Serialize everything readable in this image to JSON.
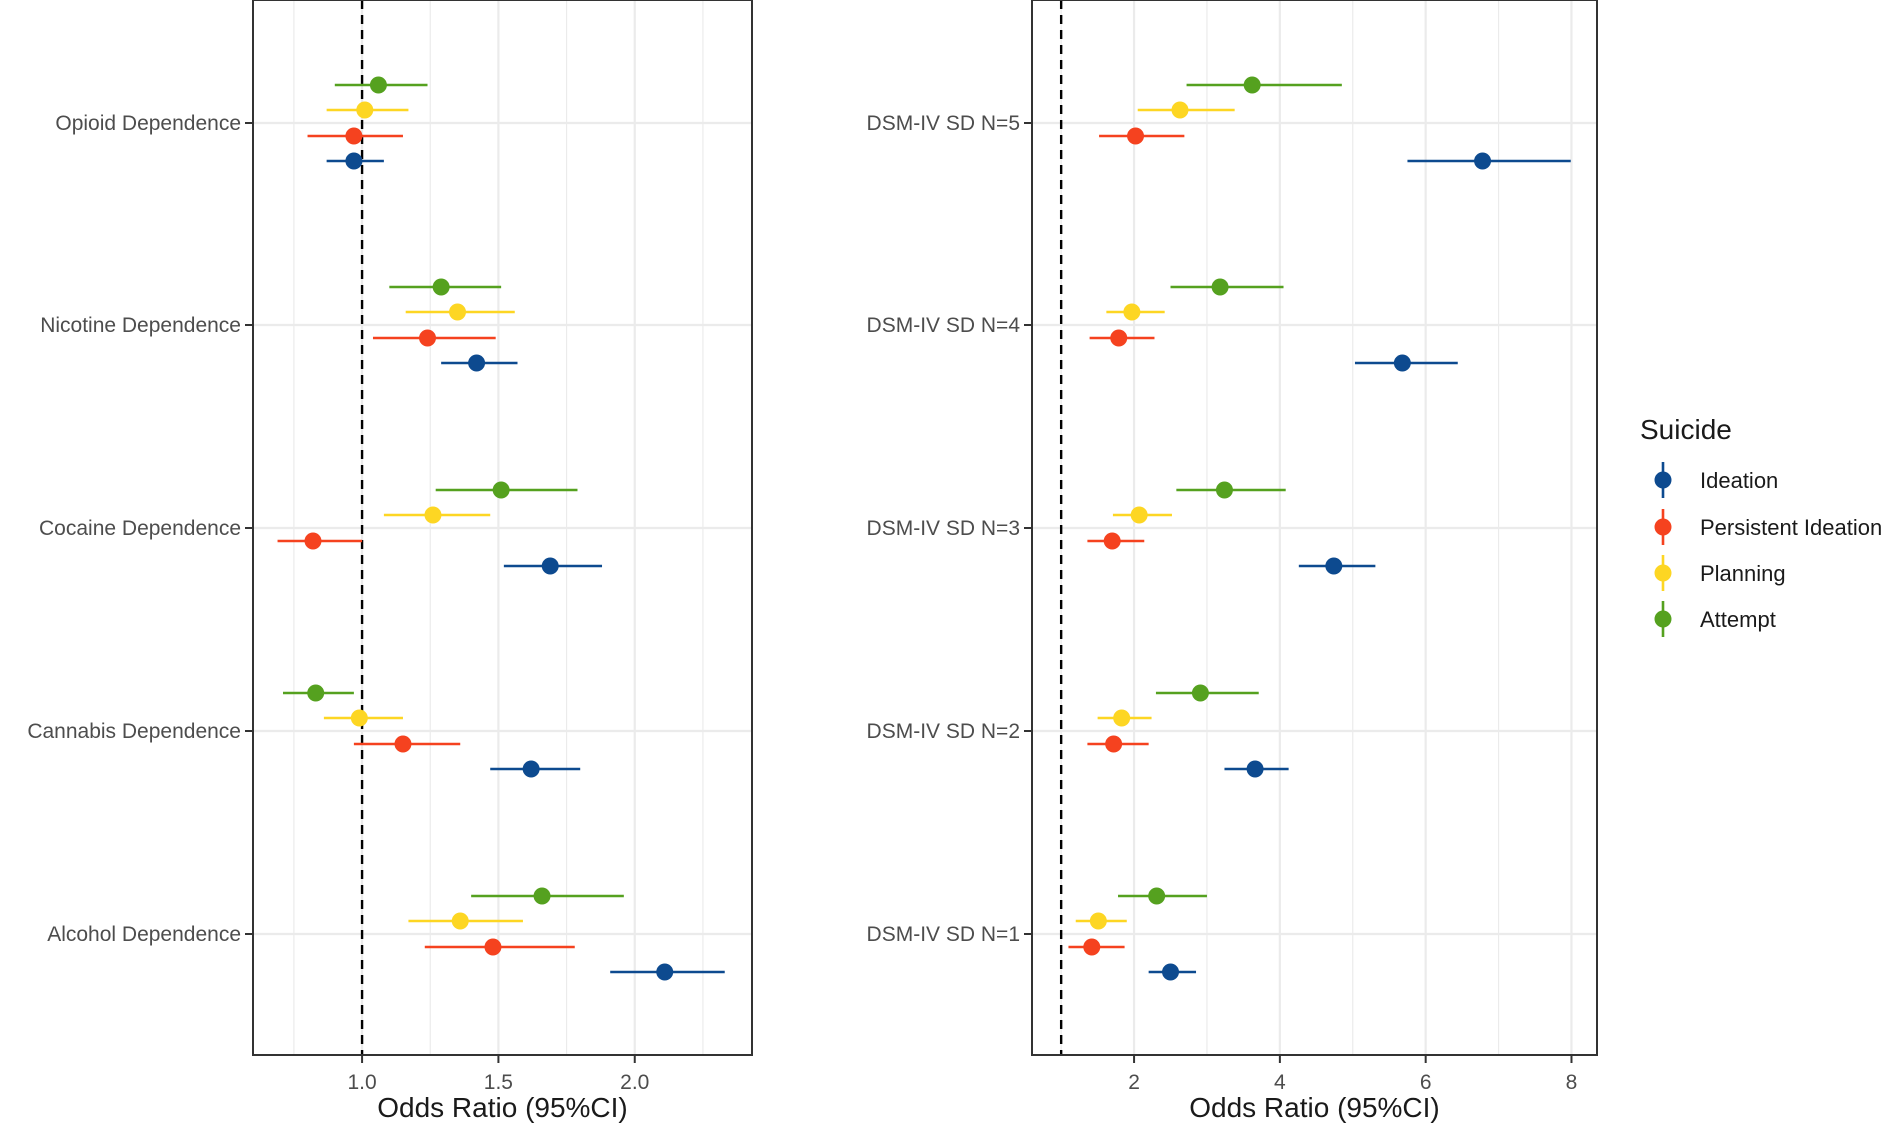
{
  "chart_data": [
    {
      "type": "forest",
      "xlabel": "Odds Ratio (95%CI)",
      "xlim": [
        0.6,
        2.43
      ],
      "xticks": [
        "1.0",
        "1.5",
        "2.0"
      ],
      "xtick_values": [
        1.0,
        1.5,
        2.0
      ],
      "reference_line": 1.0,
      "grid": true,
      "categories": [
        "Opioid Dependence",
        "Nicotine Dependence",
        "Cocaine Dependence",
        "Cannabis Dependence",
        "Alcohol Dependence"
      ],
      "series": [
        {
          "name": "Ideation",
          "estimates": [
            0.97,
            1.42,
            1.69,
            1.62,
            2.11
          ],
          "lower": [
            0.87,
            1.29,
            1.52,
            1.47,
            1.91
          ],
          "upper": [
            1.08,
            1.57,
            1.88,
            1.8,
            2.33
          ]
        },
        {
          "name": "Persistent Ideation",
          "estimates": [
            0.97,
            1.24,
            0.82,
            1.15,
            1.48
          ],
          "lower": [
            0.8,
            1.04,
            0.69,
            0.97,
            1.23
          ],
          "upper": [
            1.15,
            1.49,
            1.0,
            1.36,
            1.78
          ]
        },
        {
          "name": "Planning",
          "estimates": [
            1.01,
            1.35,
            1.26,
            0.99,
            1.36
          ],
          "lower": [
            0.87,
            1.16,
            1.08,
            0.86,
            1.17
          ],
          "upper": [
            1.17,
            1.56,
            1.47,
            1.15,
            1.59
          ]
        },
        {
          "name": "Attempt",
          "estimates": [
            1.06,
            1.29,
            1.51,
            0.83,
            1.66
          ],
          "lower": [
            0.9,
            1.1,
            1.27,
            0.71,
            1.4
          ],
          "upper": [
            1.24,
            1.51,
            1.79,
            0.97,
            1.96
          ]
        }
      ]
    },
    {
      "type": "forest",
      "xlabel": "Odds Ratio (95%CI)",
      "xlim": [
        0.6,
        8.35
      ],
      "xticks": [
        "2",
        "4",
        "6",
        "8"
      ],
      "xtick_values": [
        2,
        4,
        6,
        8
      ],
      "reference_line": 1.0,
      "grid": true,
      "categories": [
        "DSM-IV SD N=5",
        "DSM-IV SD N=4",
        "DSM-IV SD N=3",
        "DSM-IV SD N=2",
        "DSM-IV SD N=1"
      ],
      "series": [
        {
          "name": "Ideation",
          "estimates": [
            6.78,
            5.68,
            4.74,
            3.66,
            2.5
          ],
          "lower": [
            5.75,
            5.03,
            4.26,
            3.24,
            2.2
          ],
          "upper": [
            7.99,
            6.44,
            5.31,
            4.12,
            2.85
          ]
        },
        {
          "name": "Persistent Ideation",
          "estimates": [
            2.02,
            1.79,
            1.7,
            1.72,
            1.42
          ],
          "lower": [
            1.52,
            1.39,
            1.36,
            1.36,
            1.1
          ],
          "upper": [
            2.69,
            2.28,
            2.14,
            2.2,
            1.87
          ]
        },
        {
          "name": "Planning",
          "estimates": [
            2.63,
            1.97,
            2.07,
            1.83,
            1.51
          ],
          "lower": [
            2.05,
            1.62,
            1.71,
            1.5,
            1.2
          ],
          "upper": [
            3.38,
            2.42,
            2.52,
            2.24,
            1.9
          ]
        },
        {
          "name": "Attempt",
          "estimates": [
            3.62,
            3.18,
            3.24,
            2.91,
            2.31
          ],
          "lower": [
            2.72,
            2.5,
            2.58,
            2.3,
            1.78
          ],
          "upper": [
            4.85,
            4.05,
            4.08,
            3.71,
            3.0
          ]
        }
      ]
    }
  ],
  "legend": {
    "title": "Suicide",
    "items": [
      {
        "label": "Ideation",
        "color": "#0d4a8f"
      },
      {
        "label": "Persistent Ideation",
        "color": "#f5421f"
      },
      {
        "label": "Planning",
        "color": "#fdd623"
      },
      {
        "label": "Attempt",
        "color": "#55a11f"
      }
    ]
  }
}
